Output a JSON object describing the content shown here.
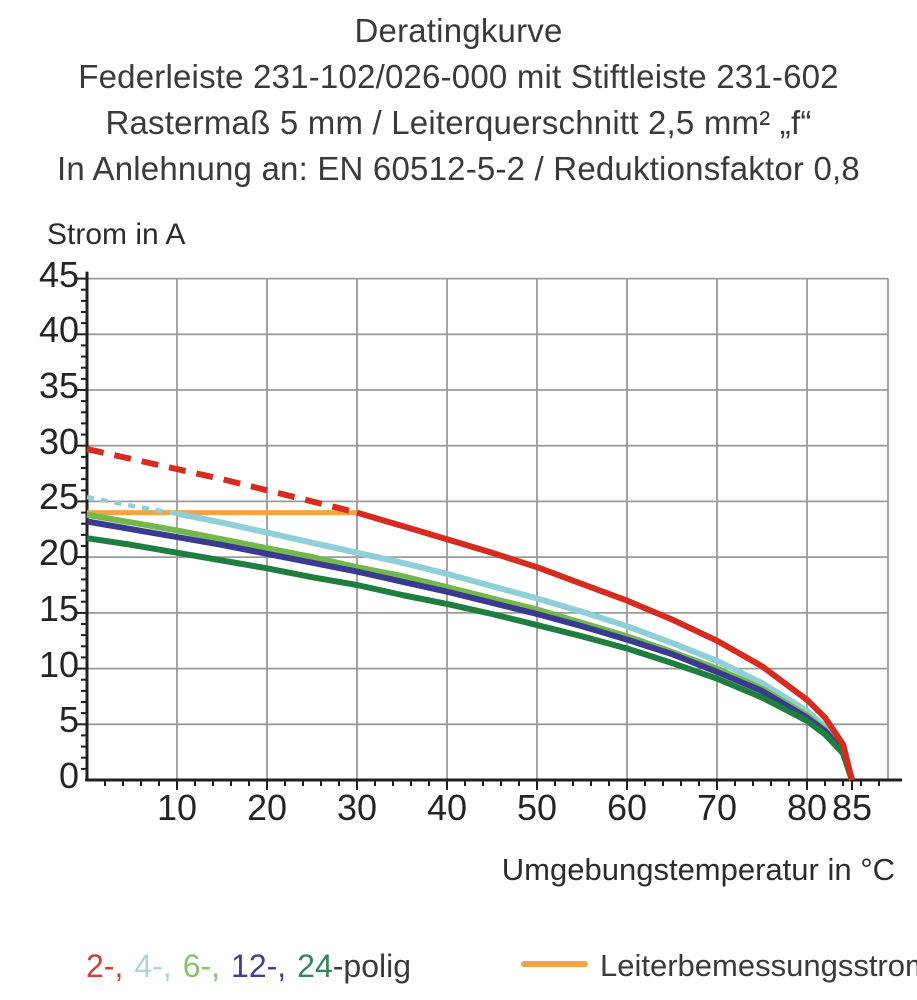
{
  "header": {
    "line1": "Deratingkurve",
    "line2": "Federleiste 231-102/026-000 mit Stiftleiste 231-602",
    "line3": "Rastermaß 5 mm / Leiterquerschnitt 2,5 mm² „f“",
    "line4": "In Anlehnung an: EN 60512-5-2 / Reduktionsfaktor 0,8"
  },
  "chart_data": {
    "type": "line",
    "title": "Deratingkurve",
    "xlabel": "Umgebungstemperatur in °C",
    "ylabel": "Strom in A",
    "xlim": [
      0,
      89
    ],
    "ylim": [
      0,
      45
    ],
    "grid": true,
    "x_tick_labels": [
      10,
      20,
      30,
      40,
      50,
      60,
      70,
      80,
      85
    ],
    "x_gridlines": [
      10,
      20,
      30,
      40,
      50,
      60,
      70,
      80
    ],
    "x_minor_step": 2,
    "y_tick_labels": [
      0,
      5,
      10,
      15,
      20,
      25,
      30,
      35,
      40,
      45
    ],
    "y_gridlines": [
      5,
      10,
      15,
      20,
      25,
      30,
      35,
      40,
      45
    ],
    "y_minor_step": 1,
    "x_samples": [
      0,
      5,
      10,
      15,
      20,
      25,
      30,
      35,
      40,
      45,
      50,
      55,
      60,
      65,
      70,
      75,
      80,
      82,
      84,
      85
    ],
    "series": [
      {
        "name": "2-polig",
        "color": "#d62b1f",
        "dash_until_x": 30,
        "values": [
          29.7,
          28.8,
          27.9,
          27.0,
          26.0,
          25.0,
          24.0,
          22.8,
          21.6,
          20.4,
          19.1,
          17.6,
          16.1,
          14.4,
          12.5,
          10.2,
          7.2,
          5.6,
          3.2,
          0
        ]
      },
      {
        "name": "4-polig",
        "color": "#8fd0d8",
        "dash_until_x": 10,
        "values": [
          25.4,
          24.6,
          23.9,
          23.1,
          22.2,
          21.3,
          20.4,
          19.5,
          18.5,
          17.4,
          16.3,
          15.1,
          13.8,
          12.3,
          10.7,
          8.7,
          6.2,
          4.8,
          2.8,
          0
        ]
      },
      {
        "name": "6-polig",
        "color": "#72b84c",
        "values": [
          23.8,
          23.1,
          22.4,
          21.6,
          20.8,
          20.0,
          19.1,
          18.3,
          17.3,
          16.3,
          15.3,
          14.1,
          12.9,
          11.5,
          10.0,
          8.2,
          5.8,
          4.5,
          2.6,
          0
        ]
      },
      {
        "name": "12-polig",
        "color": "#3a3a90",
        "values": [
          23.2,
          22.5,
          21.8,
          21.1,
          20.3,
          19.5,
          18.7,
          17.8,
          16.9,
          15.9,
          14.9,
          13.8,
          12.6,
          11.3,
          9.7,
          8.0,
          5.6,
          4.4,
          2.5,
          0
        ]
      },
      {
        "name": "24-polig",
        "color": "#1e7e3e",
        "values": [
          21.7,
          21.1,
          20.4,
          19.7,
          19.0,
          18.2,
          17.5,
          16.6,
          15.8,
          14.9,
          13.9,
          12.9,
          11.8,
          10.5,
          9.1,
          7.4,
          5.3,
          4.1,
          2.4,
          0
        ]
      }
    ],
    "rated_current_line": {
      "label": "Leiterbemessungsstrom",
      "color": "#f2a444",
      "y": 24,
      "x_start": 0,
      "x_end": 30
    },
    "legend_position": "bottom"
  },
  "legend": {
    "poles": [
      {
        "text": "2-,",
        "color": "#cd4038"
      },
      {
        "text": "4-,",
        "color": "#a8d5d8"
      },
      {
        "text": "6-,",
        "color": "#85c46b"
      },
      {
        "text": "12-,",
        "color": "#3f3f96"
      },
      {
        "text": "24",
        "color": "#35855c",
        "tight": true
      },
      {
        "text": "-polig",
        "color": "#3a3a3c",
        "tight": true
      }
    ]
  },
  "colors": {
    "grid": "#9b9b9b",
    "axis": "#1f1f20",
    "title_text": "#3a3a3c"
  }
}
